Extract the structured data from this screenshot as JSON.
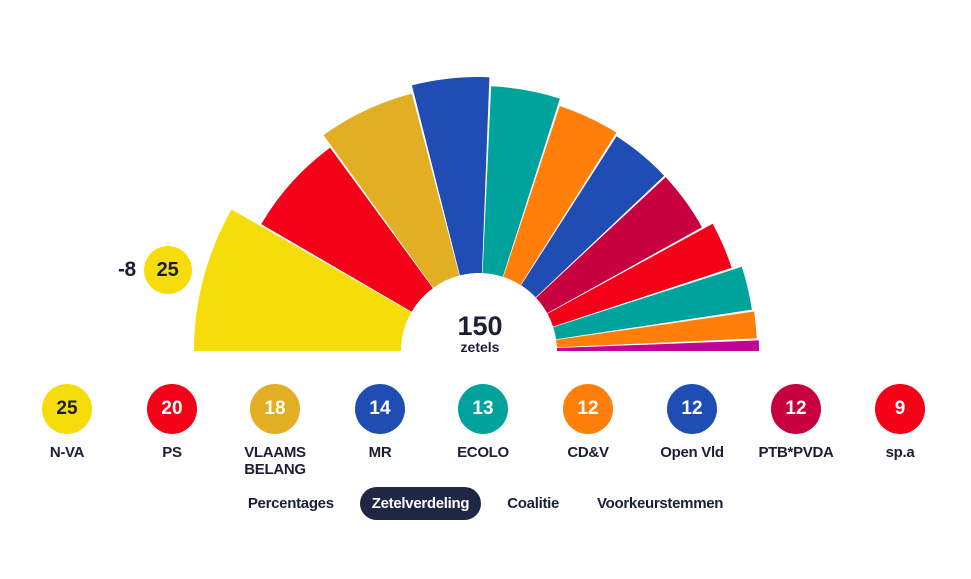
{
  "chart_data": {
    "type": "hemicycle",
    "total_seats": 150,
    "total_value": "150",
    "total_unit": "zetels",
    "highlight": {
      "party": "N-VA",
      "seats": "25",
      "change": "-8"
    },
    "parties": [
      {
        "name": "N-VA",
        "seats": 25,
        "color": "#f6dc0a",
        "dark_text": true
      },
      {
        "name": "PS",
        "seats": 20,
        "color": "#f50019"
      },
      {
        "name": "VLAAMS BELANG",
        "seats": 18,
        "color": "#e2ae24"
      },
      {
        "name": "MR",
        "seats": 14,
        "color": "#1f4db3"
      },
      {
        "name": "ECOLO",
        "seats": 13,
        "color": "#00a39b"
      },
      {
        "name": "CD&V",
        "seats": 12,
        "color": "#ff7f0a"
      },
      {
        "name": "Open Vld",
        "seats": 12,
        "color": "#1f4db3"
      },
      {
        "name": "PTB*PVDA",
        "seats": 12,
        "color": "#c8003f"
      },
      {
        "name": "sp.a",
        "seats": 9,
        "color": "#f50019"
      },
      {
        "name": "",
        "seats": 8,
        "color": "#00a39b"
      },
      {
        "name": "",
        "seats": 5,
        "color": "#ff7f0a"
      },
      {
        "name": "",
        "seats": 2,
        "color": "#c4009a"
      }
    ]
  },
  "legend_names": [
    "N-VA",
    "PS",
    "VLAAMS\nBELANG",
    "MR",
    "ECOLO",
    "CD&V",
    "Open Vld",
    "PTB*PVDA",
    "sp.a"
  ],
  "tabs": {
    "items": [
      "Percentages",
      "Zetelverdeling",
      "Coalitie",
      "Voorkeurstemmen"
    ],
    "active": "Zetelverdeling"
  }
}
